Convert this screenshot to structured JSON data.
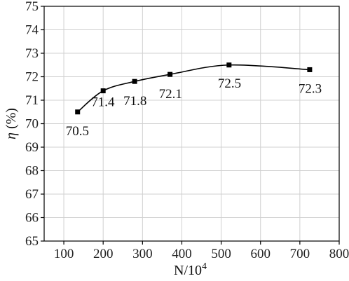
{
  "chart_data": {
    "type": "line",
    "x": [
      135,
      200,
      280,
      370,
      520,
      725
    ],
    "y": [
      70.5,
      71.4,
      71.8,
      72.1,
      72.5,
      72.3
    ],
    "point_labels": [
      "70.5",
      "71.4",
      "71.8",
      "72.1",
      "72.5",
      "72.3"
    ],
    "xlabel_main": "N/10",
    "xlabel_sup": "4",
    "ylabel_symbol": "η",
    "ylabel_unit": " (%)",
    "xlim": [
      50,
      800
    ],
    "ylim": [
      65,
      75
    ],
    "xticks": [
      100,
      200,
      300,
      400,
      500,
      600,
      700,
      800
    ],
    "yticks": [
      65,
      66,
      67,
      68,
      69,
      70,
      71,
      72,
      73,
      74,
      75
    ],
    "grid": true,
    "legend": "none",
    "line_color": "#000000",
    "marker": "square",
    "grid_color": "#d0d0d0"
  }
}
